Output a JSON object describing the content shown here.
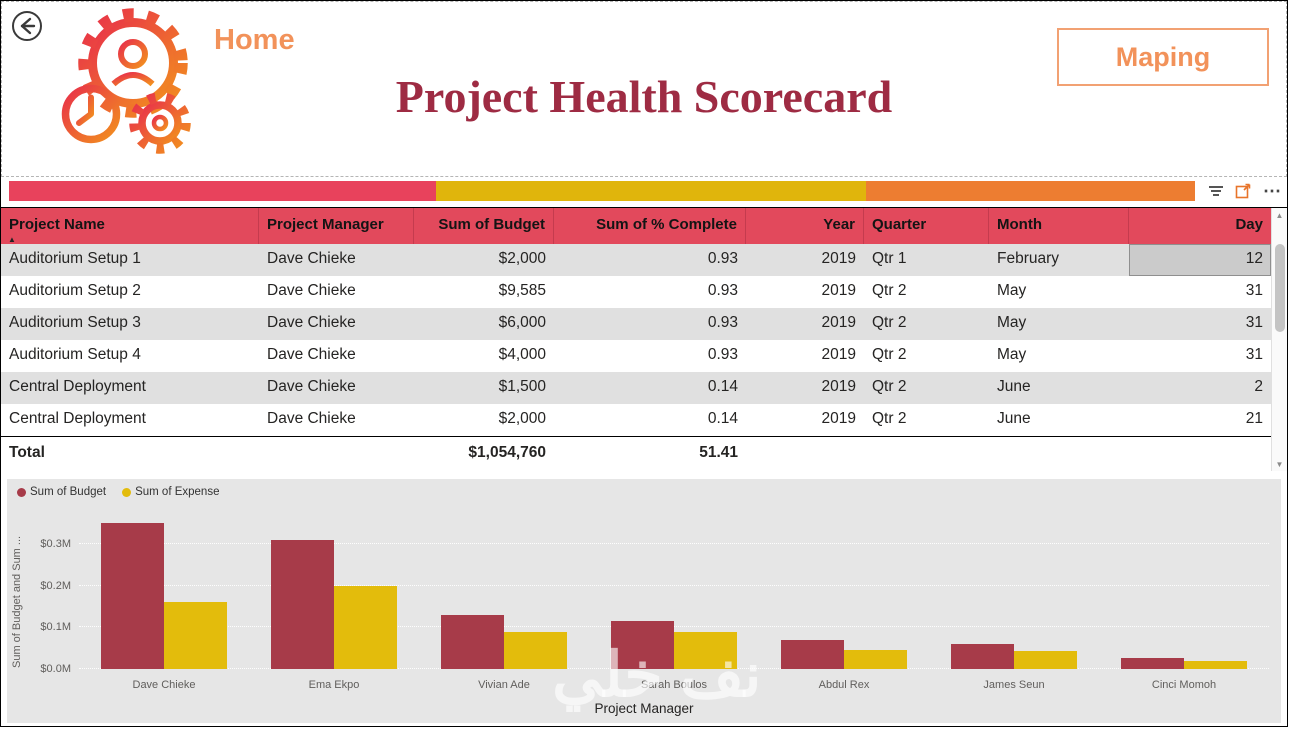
{
  "header": {
    "home_label": "Home",
    "title": "Project Health Scorecard",
    "maping_button_label": "Maping"
  },
  "icons": {
    "sort_ascending": "▲",
    "more_options": "⋯",
    "scroll_up": "▲",
    "scroll_down": "▼"
  },
  "slicer": {
    "segments": [
      {
        "name": "red",
        "color": "#E8425C",
        "width_pct": 36.0
      },
      {
        "name": "yellow",
        "color": "#E0B50C",
        "width_pct": 36.3
      },
      {
        "name": "orange",
        "color": "#ED7D31",
        "width_pct": 27.7
      }
    ]
  },
  "table": {
    "columns": [
      "Project Name",
      "Project Manager",
      "Sum of Budget",
      "Sum of % Complete",
      "Year",
      "Quarter",
      "Month",
      "Day"
    ],
    "sorted_column": "Project Name",
    "rows": [
      {
        "project": "Auditorium Setup 1",
        "manager": "Dave Chieke",
        "budget": "$2,000",
        "complete": "0.93",
        "year": "2019",
        "quarter": "Qtr 1",
        "month": "February",
        "day": "12",
        "day_selected": true
      },
      {
        "project": "Auditorium Setup 2",
        "manager": "Dave Chieke",
        "budget": "$9,585",
        "complete": "0.93",
        "year": "2019",
        "quarter": "Qtr 2",
        "month": "May",
        "day": "31"
      },
      {
        "project": "Auditorium Setup 3",
        "manager": "Dave Chieke",
        "budget": "$6,000",
        "complete": "0.93",
        "year": "2019",
        "quarter": "Qtr 2",
        "month": "May",
        "day": "31"
      },
      {
        "project": "Auditorium Setup 4",
        "manager": "Dave Chieke",
        "budget": "$4,000",
        "complete": "0.93",
        "year": "2019",
        "quarter": "Qtr 2",
        "month": "May",
        "day": "31"
      },
      {
        "project": "Central Deployment",
        "manager": "Dave Chieke",
        "budget": "$1,500",
        "complete": "0.14",
        "year": "2019",
        "quarter": "Qtr 2",
        "month": "June",
        "day": "2"
      },
      {
        "project": "Central Deployment",
        "manager": "Dave Chieke",
        "budget": "$2,000",
        "complete": "0.14",
        "year": "2019",
        "quarter": "Qtr 2",
        "month": "June",
        "day": "21"
      }
    ],
    "total": {
      "label": "Total",
      "budget": "$1,054,760",
      "complete": "51.41"
    }
  },
  "chart_data": {
    "type": "bar",
    "title": "",
    "categories": [
      "Dave Chieke",
      "Ema Ekpo",
      "Vivian Ade",
      "Sarah Boulos",
      "Abdul Rex",
      "James Seun",
      "Cinci Momoh"
    ],
    "series": [
      {
        "name": "Sum of Budget",
        "color": "#A73B49",
        "values": [
          0.35,
          0.31,
          0.13,
          0.115,
          0.07,
          0.06,
          0.027
        ]
      },
      {
        "name": "Sum of Expense",
        "color": "#E3BC0C",
        "values": [
          0.16,
          0.2,
          0.09,
          0.088,
          0.046,
          0.044,
          0.02
        ]
      }
    ],
    "xlabel": "Project Manager",
    "ylabel": "Sum of Budget and Sum ...",
    "unit": "$M",
    "ylim": [
      0,
      0.37
    ],
    "tick_values": [
      0,
      0.1,
      0.2,
      0.3
    ],
    "ytick_labels": [
      "$0.0M",
      "$0.1M",
      "$0.2M",
      "$0.3M"
    ],
    "legend_position": "top-left",
    "grid": true
  },
  "watermark": "نف خلي"
}
